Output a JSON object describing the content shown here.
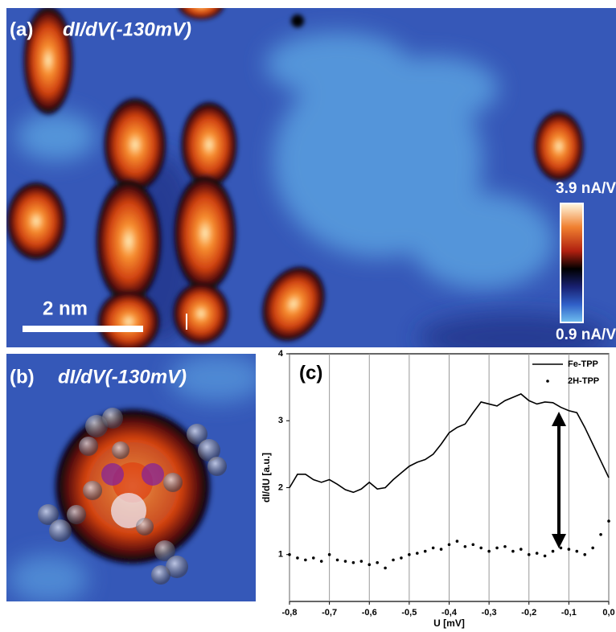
{
  "panel_a": {
    "label": "(a)",
    "title": "dI/dV(-130mV)",
    "scale_bar": "2 nm",
    "colorbar_max": "3.9 nA/V",
    "colorbar_min": "0.9 nA/V"
  },
  "panel_b": {
    "label": "(b)",
    "title": "dI/dV(-130mV)"
  },
  "chart_data": {
    "type": "line",
    "label": "(c)",
    "xlabel": "U [mV]",
    "ylabel": "dI/dU [a.u.]",
    "x": [
      -0.8,
      -0.78,
      -0.76,
      -0.74,
      -0.72,
      -0.7,
      -0.68,
      -0.66,
      -0.64,
      -0.62,
      -0.6,
      -0.58,
      -0.56,
      -0.54,
      -0.52,
      -0.5,
      -0.48,
      -0.46,
      -0.44,
      -0.42,
      -0.4,
      -0.38,
      -0.36,
      -0.34,
      -0.32,
      -0.3,
      -0.28,
      -0.26,
      -0.24,
      -0.22,
      -0.2,
      -0.18,
      -0.16,
      -0.14,
      -0.12,
      -0.1,
      -0.08,
      -0.06,
      -0.04,
      -0.02,
      0
    ],
    "series": [
      {
        "name": "Fe-TPP",
        "color": "#000000",
        "style": "line",
        "values": [
          2.0,
          2.2,
          2.2,
          2.12,
          2.08,
          2.12,
          2.05,
          1.97,
          1.93,
          1.98,
          2.08,
          1.98,
          2.0,
          2.12,
          2.22,
          2.32,
          2.38,
          2.42,
          2.5,
          2.65,
          2.82,
          2.9,
          2.95,
          3.12,
          3.28,
          3.25,
          3.22,
          3.3,
          3.35,
          3.4,
          3.3,
          3.25,
          3.28,
          3.27,
          3.2,
          3.15,
          3.12,
          2.9,
          2.65,
          2.4,
          2.15
        ]
      },
      {
        "name": "2H-TPP",
        "color": "#000000",
        "style": "dots",
        "values": [
          1.0,
          0.95,
          0.92,
          0.95,
          0.9,
          1.0,
          0.92,
          0.9,
          0.88,
          0.9,
          0.85,
          0.88,
          0.8,
          0.92,
          0.95,
          1.0,
          1.02,
          1.05,
          1.1,
          1.08,
          1.15,
          1.2,
          1.12,
          1.15,
          1.1,
          1.05,
          1.1,
          1.12,
          1.05,
          1.08,
          1.0,
          1.02,
          0.98,
          1.05,
          1.1,
          1.08,
          1.05,
          1.0,
          1.1,
          1.3,
          1.5
        ]
      }
    ],
    "xlim": [
      -0.8,
      0
    ],
    "ylim": [
      0.3,
      4
    ],
    "xticks": [
      {
        "value": -0.8,
        "label": "-0,8"
      },
      {
        "value": -0.7,
        "label": "-0,7"
      },
      {
        "value": -0.6,
        "label": "-0,6"
      },
      {
        "value": -0.5,
        "label": "-0,5"
      },
      {
        "value": -0.4,
        "label": "-0,4"
      },
      {
        "value": -0.3,
        "label": "-0,3"
      },
      {
        "value": -0.2,
        "label": "-0,2"
      },
      {
        "value": -0.1,
        "label": "-0,1"
      },
      {
        "value": 0,
        "label": "0,0"
      }
    ],
    "yticks": [
      1,
      2,
      3,
      4
    ],
    "grid": "x",
    "legend": "upper right"
  }
}
